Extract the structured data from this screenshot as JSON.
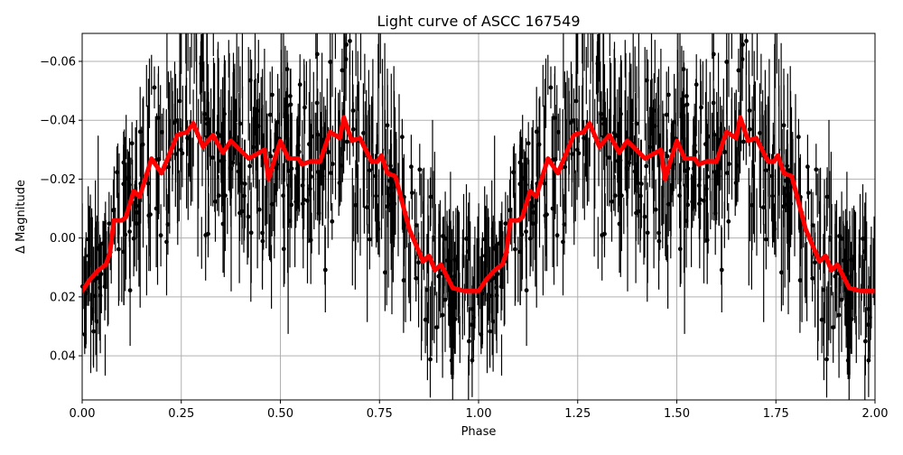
{
  "chart_data": {
    "type": "scatter",
    "title": "Light curve of ASCC 167549",
    "xlabel": "Phase",
    "ylabel": "Δ Magnitude",
    "xlim": [
      0.0,
      2.0
    ],
    "ylim": [
      0.055,
      -0.0695
    ],
    "y_inverted": true,
    "grid": true,
    "x_ticks": [
      0.0,
      0.25,
      0.5,
      0.75,
      1.0,
      1.25,
      1.5,
      1.75,
      2.0
    ],
    "x_tick_labels": [
      "0.00",
      "0.25",
      "0.50",
      "0.75",
      "1.00",
      "1.25",
      "1.50",
      "1.75",
      "2.00"
    ],
    "y_ticks": [
      -0.06,
      -0.04,
      -0.02,
      0.0,
      0.02,
      0.04
    ],
    "y_tick_labels": [
      "−0.06",
      "−0.04",
      "−0.02",
      "0.00",
      "0.02",
      "0.04"
    ],
    "series": [
      {
        "name": "observations",
        "kind": "errorbar",
        "color": "#000000",
        "description": "Dense phase-folded photometry with vertical error bars, repeated over two cycles; scatter spans roughly ±0.05 mag around the model curve",
        "envelope_phase": [
          0.0,
          0.1,
          0.2,
          0.3,
          0.4,
          0.5,
          0.6,
          0.7,
          0.8,
          0.9,
          1.0
        ],
        "envelope_upper": [
          -0.025,
          -0.035,
          -0.05,
          -0.07,
          -0.07,
          -0.065,
          -0.07,
          -0.07,
          -0.06,
          -0.045,
          -0.035
        ],
        "envelope_lower": [
          0.055,
          0.05,
          0.045,
          0.045,
          0.045,
          0.04,
          0.04,
          0.045,
          0.05,
          0.055,
          0.055
        ]
      },
      {
        "name": "model fit",
        "kind": "line",
        "color": "#ff0000",
        "line_width": 5,
        "x": [
          0.0,
          0.02,
          0.04,
          0.06,
          0.07,
          0.08,
          0.1,
          0.11,
          0.13,
          0.145,
          0.175,
          0.2,
          0.24,
          0.265,
          0.28,
          0.305,
          0.33,
          0.355,
          0.375,
          0.42,
          0.46,
          0.47,
          0.5,
          0.52,
          0.545,
          0.555,
          0.575,
          0.6,
          0.625,
          0.65,
          0.66,
          0.68,
          0.7,
          0.73,
          0.745,
          0.755,
          0.77,
          0.79,
          0.825,
          0.86,
          0.875,
          0.89,
          0.905,
          0.935,
          0.965,
          1.0,
          1.02,
          1.04,
          1.06,
          1.07,
          1.08,
          1.1,
          1.11,
          1.13,
          1.145,
          1.175,
          1.2,
          1.24,
          1.265,
          1.28,
          1.305,
          1.33,
          1.355,
          1.375,
          1.42,
          1.46,
          1.47,
          1.5,
          1.52,
          1.545,
          1.555,
          1.575,
          1.6,
          1.625,
          1.65,
          1.66,
          1.68,
          1.7,
          1.73,
          1.745,
          1.755,
          1.77,
          1.79,
          1.825,
          1.86,
          1.875,
          1.89,
          1.905,
          1.935,
          1.965,
          2.0
        ],
        "y": [
          0.018,
          0.014,
          0.011,
          0.009,
          0.005,
          -0.006,
          -0.006,
          -0.007,
          -0.016,
          -0.014,
          -0.027,
          -0.022,
          -0.035,
          -0.036,
          -0.039,
          -0.031,
          -0.035,
          -0.029,
          -0.033,
          -0.027,
          -0.03,
          -0.02,
          -0.033,
          -0.027,
          -0.027,
          -0.025,
          -0.026,
          -0.026,
          -0.036,
          -0.034,
          -0.041,
          -0.033,
          -0.034,
          -0.026,
          -0.026,
          -0.028,
          -0.022,
          -0.021,
          -0.003,
          0.008,
          0.006,
          0.011,
          0.009,
          0.017,
          0.018,
          0.018,
          0.014,
          0.011,
          0.009,
          0.005,
          -0.006,
          -0.006,
          -0.007,
          -0.016,
          -0.014,
          -0.027,
          -0.022,
          -0.035,
          -0.036,
          -0.039,
          -0.031,
          -0.035,
          -0.029,
          -0.033,
          -0.027,
          -0.03,
          -0.02,
          -0.033,
          -0.027,
          -0.027,
          -0.025,
          -0.026,
          -0.026,
          -0.036,
          -0.034,
          -0.041,
          -0.033,
          -0.034,
          -0.026,
          -0.026,
          -0.028,
          -0.022,
          -0.021,
          -0.003,
          0.008,
          0.006,
          0.011,
          0.009,
          0.017,
          0.018,
          0.018
        ]
      }
    ]
  },
  "colors": {
    "data": "#000000",
    "model": "#ff0000",
    "grid": "#b0b0b0",
    "background": "#ffffff"
  }
}
